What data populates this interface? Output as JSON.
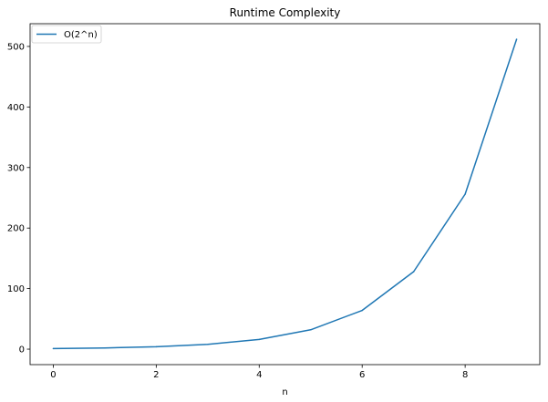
{
  "chart_data": {
    "type": "line",
    "title": "Runtime Complexity",
    "xlabel": "n",
    "ylabel": "",
    "xlim": [
      -0.45,
      9.45
    ],
    "ylim": [
      -25.55,
      537.55
    ],
    "xticks": [
      0,
      2,
      4,
      6,
      8
    ],
    "yticks": [
      0,
      100,
      200,
      300,
      400,
      500
    ],
    "grid": false,
    "legend": "top-left",
    "series": [
      {
        "name": "O(2^n)",
        "color": "#1f77b4",
        "x": [
          0,
          1,
          2,
          3,
          4,
          5,
          6,
          7,
          8,
          9
        ],
        "values": [
          1,
          2,
          4,
          8,
          16,
          32,
          64,
          128,
          256,
          512
        ]
      }
    ]
  }
}
